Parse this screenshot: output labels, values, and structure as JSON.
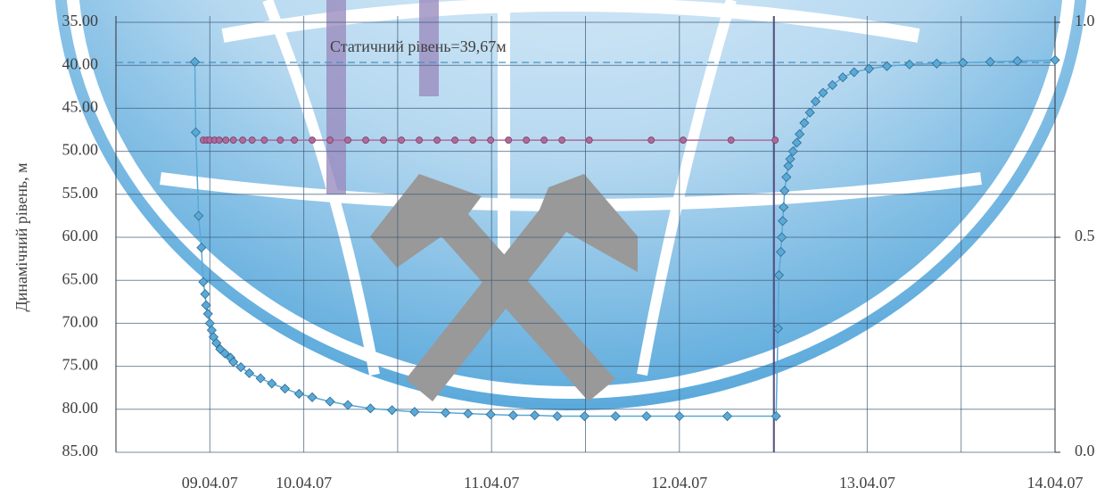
{
  "chart_data": {
    "type": "line",
    "y_label": "Динамічний рівень, м",
    "y_reversed": true,
    "ylim": [
      35,
      85
    ],
    "yticks": [
      {
        "value": 35,
        "label": "35.00"
      },
      {
        "value": 40,
        "label": "40.00"
      },
      {
        "value": 45,
        "label": "45.00"
      },
      {
        "value": 50,
        "label": "50.00"
      },
      {
        "value": 55,
        "label": "55.00"
      },
      {
        "value": 60,
        "label": "60.00"
      },
      {
        "value": 65,
        "label": "65.00"
      },
      {
        "value": 70,
        "label": "70.00"
      },
      {
        "value": 75,
        "label": "75.00"
      },
      {
        "value": 80,
        "label": "80.00"
      },
      {
        "value": 85,
        "label": "85.00"
      }
    ],
    "y2lim": [
      0,
      1
    ],
    "y2ticks": [
      {
        "value": 0,
        "label": "0.0"
      },
      0.5,
      {
        "value": 1,
        "label": "1.0"
      }
    ],
    "xlim": [
      0,
      10
    ],
    "xticks": [
      {
        "value": 0,
        "label": null
      },
      {
        "value": 1,
        "label": "09.04.07"
      },
      {
        "value": 2,
        "label": "10.04.07"
      },
      {
        "value": 3,
        "label": null
      },
      {
        "value": 4,
        "label": "11.04.07"
      },
      {
        "value": 5,
        "label": null
      },
      {
        "value": 6,
        "label": "12.04.07"
      },
      {
        "value": 7,
        "label": null
      },
      {
        "value": 8,
        "label": "13.04.07"
      },
      {
        "value": 9,
        "label": null
      },
      {
        "value": 10,
        "label": "14.04.07"
      }
    ],
    "grid": true,
    "static_level": {
      "value": 39.67,
      "label": "Статичний рівень=39,67м"
    },
    "series": [
      {
        "color": "#5aa9d6",
        "marker": "diamond",
        "x": [
          0.84,
          0.85,
          0.88,
          0.91,
          0.93,
          0.95,
          0.96,
          0.98,
          1.0,
          1.02,
          1.04,
          1.07,
          1.11,
          1.16,
          1.22,
          1.25,
          1.33,
          1.42,
          1.54,
          1.66,
          1.8,
          1.95,
          2.09,
          2.28,
          2.47,
          2.71,
          2.94,
          3.18,
          3.51,
          3.75,
          3.99,
          4.23,
          4.46,
          4.7,
          4.99,
          5.32,
          5.65,
          6.0,
          6.51,
          7.03,
          7.05,
          7.06,
          7.08,
          7.09,
          7.1,
          7.11,
          7.12,
          7.14,
          7.16,
          7.18,
          7.21,
          7.25,
          7.28,
          7.33,
          7.39,
          7.45,
          7.53,
          7.63,
          7.74,
          7.86,
          8.02,
          8.21,
          8.45,
          8.74,
          9.02,
          9.31,
          9.6,
          10.0
        ],
        "values": [
          39.6,
          47.8,
          57.5,
          61.2,
          65.2,
          66.6,
          67.9,
          68.9,
          70.0,
          70.8,
          71.6,
          72.3,
          73.0,
          73.5,
          74.0,
          74.5,
          75.1,
          75.8,
          76.4,
          77.0,
          77.6,
          78.2,
          78.6,
          79.1,
          79.5,
          79.9,
          80.1,
          80.3,
          80.4,
          80.5,
          80.6,
          80.7,
          80.7,
          80.8,
          80.8,
          80.8,
          80.8,
          80.8,
          80.8,
          80.8,
          70.6,
          64.4,
          61.7,
          60.0,
          58.1,
          56.5,
          54.6,
          53.0,
          51.7,
          50.9,
          50.0,
          49.0,
          48.0,
          46.7,
          45.5,
          44.2,
          43.2,
          42.3,
          41.4,
          40.8,
          40.4,
          40.1,
          39.9,
          39.8,
          39.7,
          39.6,
          39.5,
          39.4
        ]
      },
      {
        "color": "#b06a9a",
        "marker": "circle",
        "x": [
          0.93,
          0.97,
          1.0,
          1.05,
          1.1,
          1.17,
          1.25,
          1.35,
          1.45,
          1.58,
          1.75,
          1.9,
          2.09,
          2.28,
          2.47,
          2.66,
          2.85,
          3.04,
          3.23,
          3.42,
          3.61,
          3.8,
          3.99,
          4.18,
          4.37,
          4.56,
          4.75,
          5.04,
          5.7,
          6.04,
          6.55,
          7.02
        ],
        "values": [
          48.7,
          48.7,
          48.7,
          48.7,
          48.7,
          48.7,
          48.7,
          48.7,
          48.7,
          48.7,
          48.7,
          48.7,
          48.7,
          48.7,
          48.7,
          48.7,
          48.7,
          48.7,
          48.7,
          48.7,
          48.7,
          48.7,
          48.7,
          48.7,
          48.7,
          48.7,
          48.7,
          48.7,
          48.7,
          48.7,
          48.7,
          48.7
        ]
      }
    ]
  }
}
